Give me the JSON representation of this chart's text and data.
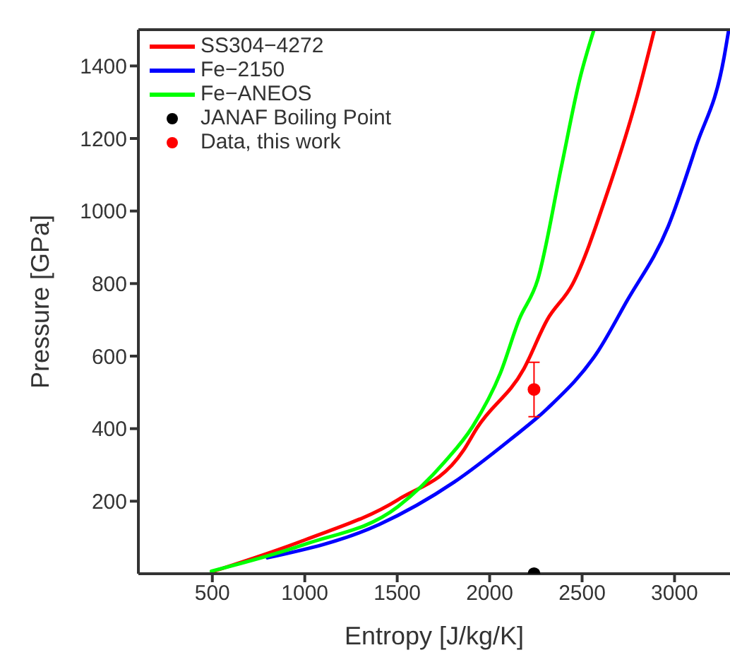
{
  "chart_data": {
    "type": "line",
    "xlabel": "Entropy [J/kg/K]",
    "ylabel": "Pressure [GPa]",
    "xlim": [
      100,
      3300
    ],
    "ylim": [
      0,
      1500
    ],
    "xticks": [
      500,
      1000,
      1500,
      2000,
      2500,
      3000
    ],
    "yticks": [
      200,
      400,
      600,
      800,
      1000,
      1200,
      1400
    ],
    "legend": "top left",
    "line_style": "solid",
    "series": [
      {
        "name": "SS304−4272",
        "color": "#ff0000",
        "x": [
          508,
          1000,
          1504,
          1857,
          1933,
          2185,
          2311,
          2449,
          2640,
          2790,
          2890
        ],
        "values": [
          7,
          93,
          204,
          339,
          403,
          565,
          700,
          799,
          1056,
          1301,
          1498
        ]
      },
      {
        "name": "Fe−2150",
        "color": "#0000ff",
        "x": [
          798,
          1403,
          1806,
          2109,
          2311,
          2588,
          2739,
          2966,
          3117,
          3268,
          3293
        ],
        "values": [
          44,
          136,
          252,
          369,
          455,
          615,
          749,
          958,
          1179,
          1424,
          1499
        ]
      },
      {
        "name": "Fe−ANEOS",
        "color": "#00ff00",
        "x": [
          495,
          1000,
          1504,
          1756,
          1908,
          2058,
          2159,
          2260,
          2386,
          2487,
          2563
        ],
        "values": [
          7,
          81,
          185,
          308,
          406,
          553,
          700,
          811,
          1117,
          1363,
          1498
        ]
      },
      {
        "name": "JANAF Boiling Point",
        "type": "scatter",
        "marker": "circle",
        "color": "#000000",
        "x": [
          2240
        ],
        "values": [
          0
        ]
      },
      {
        "name": "Data, this work",
        "type": "scatter",
        "marker": "circle",
        "color": "#ff0000",
        "x": [
          2240
        ],
        "values": [
          508
        ],
        "errors": [
          75
        ]
      }
    ]
  }
}
